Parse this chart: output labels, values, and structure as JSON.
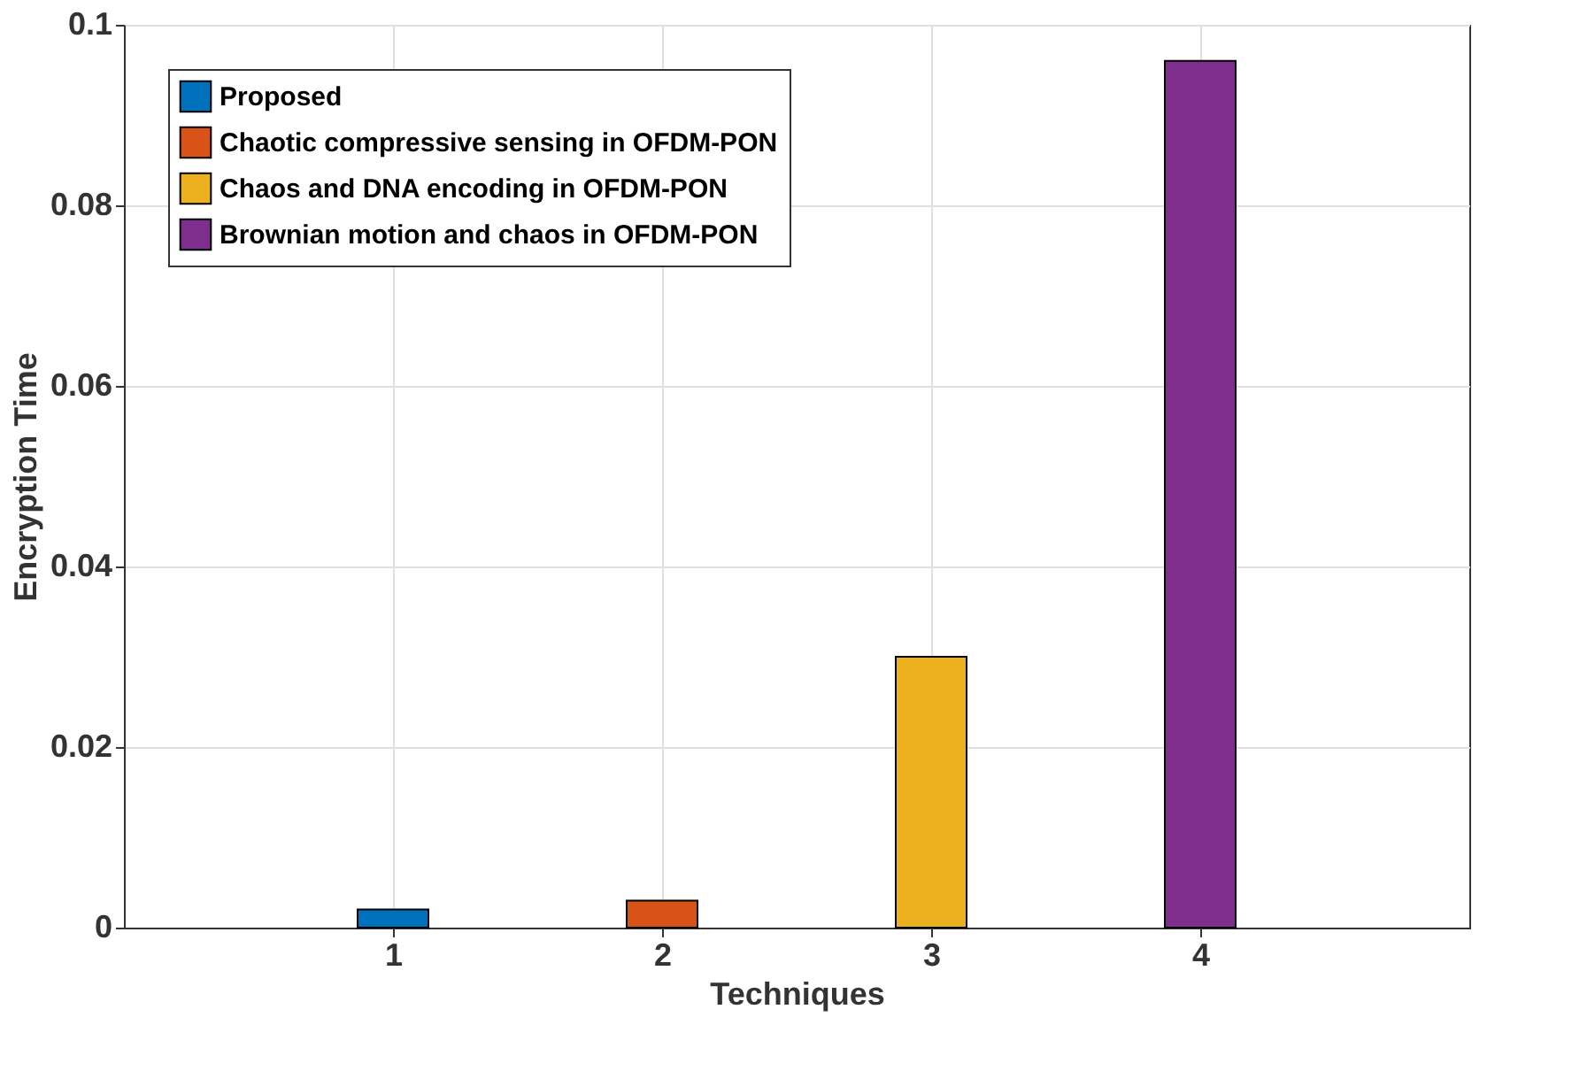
{
  "chart_data": {
    "type": "bar",
    "xlabel": "Techniques",
    "ylabel": "Encryption Time",
    "x": [
      1,
      2,
      3,
      4
    ],
    "series": [
      {
        "name": "Proposed",
        "color": "#0072bd",
        "values": [
          0.002,
          null,
          null,
          null
        ]
      },
      {
        "name": "Chaotic compressive sensing in OFDM-PON",
        "color": "#d95319",
        "values": [
          null,
          0.003,
          null,
          null
        ]
      },
      {
        "name": "Chaos and DNA encoding in OFDM-PON",
        "color": "#edb120",
        "values": [
          null,
          null,
          0.03,
          null
        ]
      },
      {
        "name": "Brownian motion and chaos in OFDM-PON",
        "color": "#7e2f8e",
        "values": [
          null,
          null,
          null,
          0.096
        ]
      }
    ],
    "xlim": [
      0,
      5
    ],
    "xticks": [
      1,
      2,
      3,
      4
    ],
    "ylim": [
      0,
      0.1
    ],
    "yticks": [
      0,
      0.02,
      0.04,
      0.06,
      0.08,
      0.1
    ],
    "grid": true,
    "legend": "top left"
  }
}
